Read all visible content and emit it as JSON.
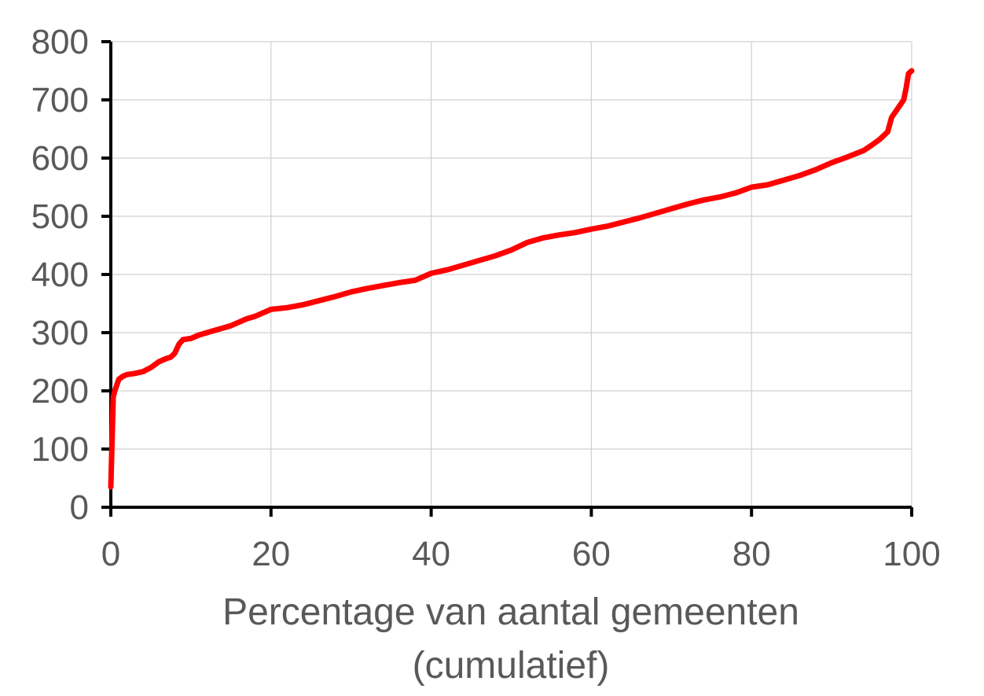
{
  "chart_data": {
    "type": "line",
    "title": "",
    "xlabel_lines": [
      "Percentage van aantal gemeenten",
      "(cumulatief)"
    ],
    "ylabel": "",
    "xlim": [
      0,
      100
    ],
    "ylim": [
      0,
      800
    ],
    "x_ticks": [
      0,
      20,
      40,
      60,
      80,
      100
    ],
    "y_ticks": [
      0,
      100,
      200,
      300,
      400,
      500,
      600,
      700,
      800
    ],
    "grid": true,
    "legend": "none",
    "series": [
      {
        "color": "#ff0000",
        "x": [
          0,
          0.3,
          0.5,
          1,
          1.5,
          2,
          3,
          4,
          5,
          6,
          7,
          7.5,
          8,
          8.5,
          9,
          10,
          11,
          12,
          13,
          14,
          15,
          16,
          17,
          18,
          19,
          20,
          22,
          24,
          26,
          28,
          30,
          32,
          34,
          36,
          38,
          40,
          42,
          44,
          46,
          48,
          50,
          52,
          54,
          56,
          58,
          60,
          62,
          64,
          66,
          68,
          70,
          72,
          74,
          76,
          78,
          80,
          82,
          84,
          86,
          88,
          90,
          92,
          94,
          95,
          96,
          97,
          97.5,
          98,
          98.5,
          99,
          99.3,
          99.6,
          100
        ],
        "y": [
          35,
          190,
          200,
          220,
          225,
          228,
          230,
          233,
          240,
          250,
          256,
          258,
          265,
          280,
          288,
          290,
          296,
          300,
          304,
          308,
          312,
          318,
          324,
          328,
          334,
          340,
          343,
          348,
          355,
          362,
          370,
          376,
          381,
          386,
          390,
          402,
          408,
          416,
          424,
          432,
          442,
          455,
          463,
          468,
          472,
          478,
          483,
          490,
          497,
          505,
          513,
          521,
          528,
          533,
          540,
          550,
          554,
          562,
          570,
          580,
          592,
          602,
          613,
          622,
          632,
          645,
          670,
          680,
          690,
          700,
          720,
          745,
          750
        ]
      }
    ]
  }
}
